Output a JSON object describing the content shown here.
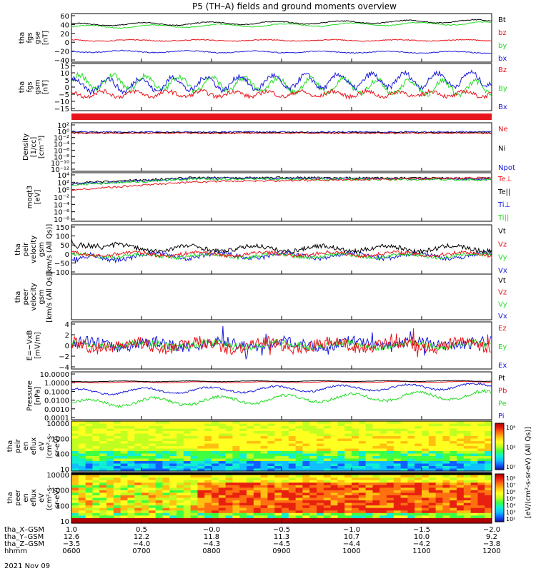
{
  "title": "P5 (TH–A) fields and ground moments overview",
  "colors": {
    "black": "#000000",
    "red": "#e8141c",
    "green": "#22dd22",
    "blue": "#1a1adb"
  },
  "panels": [
    {
      "id": "fgs-gse",
      "ylabel": [
        "tha",
        "fgs",
        "gse",
        "[nT]"
      ],
      "ticks": [
        "60",
        "40",
        "20",
        "0",
        "−20",
        "−40"
      ],
      "legend": [
        {
          "t": "Bt",
          "c": "black"
        },
        {
          "t": "bz",
          "c": "red"
        },
        {
          "t": "by",
          "c": "green"
        },
        {
          "t": "bx",
          "c": "blue"
        }
      ],
      "ymin": -40,
      "ymax": 65,
      "series": [
        {
          "c": "green",
          "base": 36,
          "amp": 3,
          "noise": 1,
          "trend": 8
        },
        {
          "c": "black",
          "base": 41,
          "amp": 3,
          "noise": 1,
          "trend": 8
        },
        {
          "c": "red",
          "base": 7,
          "amp": 1.5,
          "noise": 1,
          "trend": 0
        },
        {
          "c": "blue",
          "base": -17,
          "amp": 2,
          "noise": 1,
          "trend": -2
        }
      ]
    },
    {
      "id": "fgs-gsm",
      "ylabel": [
        "tha",
        "fgs",
        "gsm",
        "[nT]"
      ],
      "ticks": [
        "15",
        "10",
        "5",
        "0",
        "−5",
        "−10",
        "−15"
      ],
      "legend": [
        {
          "t": "Bz",
          "c": "red"
        },
        {
          "t": "By",
          "c": "green"
        },
        {
          "t": "Bx",
          "c": "blue"
        }
      ],
      "ymin": -18,
      "ymax": 16,
      "series": [
        {
          "c": "green",
          "base": 3,
          "amp": 5,
          "noise": 2,
          "trend": -5,
          "osc": 0.6
        },
        {
          "c": "blue",
          "base": 0,
          "amp": 5,
          "noise": 2,
          "trend": 5,
          "osc": 0.6
        },
        {
          "c": "red",
          "base": -6,
          "amp": 2,
          "noise": 1.5,
          "trend": 0,
          "osc": 0.3
        }
      ]
    },
    {
      "id": "density",
      "ylabel": [
        "Density",
        "[1/cc]",
        "[cm⁻³]"
      ],
      "ticks": [
        "10²",
        "10⁰",
        "10⁻²",
        "10⁻⁴",
        "10⁻⁶",
        "10⁻⁸",
        "10⁻¹⁰",
        "10⁻¹²"
      ],
      "legend": [
        {
          "t": "Ne",
          "c": "red"
        },
        {
          "t": "Ni",
          "c": "black"
        },
        {
          "t": "Npot",
          "c": "blue"
        }
      ]
    },
    {
      "id": "temperature",
      "ylabel": [
        "moqt3",
        "[eV]"
      ],
      "ticks": [
        "10⁴",
        "10²",
        "10⁰",
        "10⁻²",
        "10⁻⁴",
        "10⁻⁶",
        "10⁻⁸"
      ],
      "legend": [
        {
          "t": "Te⊥",
          "c": "red"
        },
        {
          "t": "Te||",
          "c": "black"
        },
        {
          "t": "Ti⊥",
          "c": "blue"
        },
        {
          "t": "Ti||",
          "c": "green"
        }
      ]
    },
    {
      "id": "peir-velocity",
      "ylabel": [
        "tha",
        "peir",
        "velocity",
        "gsm",
        "[km/s (All Qs)]"
      ],
      "ticks": [
        "150",
        "100",
        "50",
        "0",
        "−50",
        "−100"
      ],
      "legend": [
        {
          "t": "Vt",
          "c": "black"
        },
        {
          "t": "Vz",
          "c": "red"
        },
        {
          "t": "Vy",
          "c": "green"
        },
        {
          "t": "Vx",
          "c": "blue"
        }
      ],
      "ymin": -110,
      "ymax": 160,
      "series": [
        {
          "c": "blue",
          "base": -10,
          "amp": 15,
          "noise": 12,
          "trend": 0,
          "early": -35
        },
        {
          "c": "green",
          "base": -10,
          "amp": 10,
          "noise": 10,
          "trend": 0
        },
        {
          "c": "red",
          "base": 0,
          "amp": 10,
          "noise": 10,
          "trend": 0
        },
        {
          "c": "black",
          "base": 30,
          "amp": 15,
          "noise": 12,
          "trend": 0,
          "early": 40
        }
      ]
    },
    {
      "id": "peer-velocity",
      "ylabel": [
        "tha",
        "peer",
        "velocity",
        "gsm",
        "[km/s (All Qs)]"
      ],
      "ticks": [],
      "legend": [
        {
          "t": "Vt",
          "c": "black"
        },
        {
          "t": "Vz",
          "c": "red"
        },
        {
          "t": "Vy",
          "c": "green"
        },
        {
          "t": "Vx",
          "c": "blue"
        }
      ]
    },
    {
      "id": "efield",
      "ylabel": [
        "E=−VxB",
        "[mV/m]"
      ],
      "ticks": [
        "4",
        "2",
        "0",
        "−2",
        "−4"
      ],
      "legend": [
        {
          "t": "Ez",
          "c": "red"
        },
        {
          "t": "Ey",
          "c": "green"
        },
        {
          "t": "Ex",
          "c": "blue"
        }
      ],
      "ymin": -4,
      "ymax": 4,
      "series": [
        {
          "c": "blue",
          "base": 0.2,
          "amp": 0.5,
          "noise": 0.9,
          "trend": 0,
          "spike": 1
        },
        {
          "c": "green",
          "base": 0.1,
          "amp": 0.4,
          "noise": 0.6,
          "trend": 0
        },
        {
          "c": "red",
          "base": 0,
          "amp": 0.6,
          "noise": 1.0,
          "trend": 0,
          "spike": 1
        }
      ]
    },
    {
      "id": "pressure",
      "ylabel": [
        "Pressure",
        "[nPa]"
      ],
      "ticks": [
        "10.0000",
        "1.0000",
        "0.1000",
        "0.0100",
        "0.0010",
        "0.0001"
      ],
      "legend": [
        {
          "t": "Pt",
          "c": "black"
        },
        {
          "t": "Pb",
          "c": "red"
        },
        {
          "t": "Pe",
          "c": "green"
        },
        {
          "t": "Pi",
          "c": "blue"
        }
      ],
      "ymin": -4,
      "ymax": 1,
      "series": [
        {
          "c": "green",
          "base": -2.3,
          "amp": 0.4,
          "noise": 0.15,
          "trend": 0.9
        },
        {
          "c": "blue",
          "base": -1.1,
          "amp": 0.3,
          "noise": 0.1,
          "trend": 0.6
        },
        {
          "c": "red",
          "base": -0.1,
          "amp": 0.05,
          "noise": 0.02,
          "trend": 0.05
        },
        {
          "c": "black",
          "base": 0,
          "amp": 0.04,
          "noise": 0.02,
          "trend": 0.05
        }
      ]
    },
    {
      "id": "peir-spectrogram",
      "ylabel": [
        "tha",
        "peir",
        "en",
        "eflux",
        "eV",
        "(cm²-s-",
        "sr-eV)"
      ],
      "ticks": [
        "10000",
        "1000",
        "100",
        "10"
      ],
      "legend": []
    },
    {
      "id": "peer-spectrogram",
      "ylabel": [
        "tha",
        "peer",
        "en",
        "eflux",
        "eV",
        "(cm²-s-",
        "sr-eV)"
      ],
      "ticks": [
        "10000",
        "1000",
        "100",
        "10"
      ],
      "legend": []
    }
  ],
  "colorbar": {
    "label": "[eV/(cm²-s-sr-eV) (All Qs)]",
    "upper_ticks": [
      "10⁸",
      "10⁴",
      "10²"
    ],
    "lower_ticks": [
      "10⁸",
      "10⁷",
      "10⁶",
      "10⁵",
      "10⁴",
      "10³",
      "10²"
    ]
  },
  "axis_rows": [
    {
      "label": "tha_X–GSM",
      "values": [
        "1.0",
        "0.5",
        "−0.0",
        "−0.5",
        "−1.0",
        "−1.5",
        "−2.0"
      ]
    },
    {
      "label": "tha_Y–GSM",
      "values": [
        "12.6",
        "12.2",
        "11.8",
        "11.3",
        "10.7",
        "10.0",
        "9.2"
      ]
    },
    {
      "label": "tha_Z–GSM",
      "values": [
        "−3.5",
        "−4.0",
        "−4.3",
        "−4.5",
        "−4.4",
        "−4.2",
        "−3.8"
      ]
    },
    {
      "label": "hhmm",
      "values": [
        "0600",
        "0700",
        "0800",
        "0900",
        "1000",
        "1100",
        "1200"
      ]
    }
  ],
  "date": "2021 Nov 09"
}
